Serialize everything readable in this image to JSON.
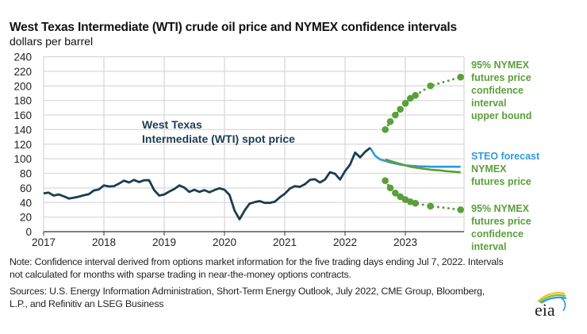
{
  "title": "West Texas Intermediate (WTI) crude oil price and NYMEX confidence intervals",
  "subtitle": "dollars per barrel",
  "note": "Note: Confidence interval derived from options market information for the five trading days ending Jul 7, 2022. Intervals not calculated for months with sparse trading in near-the-money options contracts.",
  "sources": "Sources: U.S. Energy Information Administration, Short-Term Energy Outlook, July 2022, CME Group, Bloomberg, L.P., and Refinitiv an LSEG Business",
  "logo_text": "eia",
  "colors": {
    "spot": "#1b3c52",
    "steo": "#2e9ad8",
    "nymex": "#5a9f3a",
    "grid": "#d9d9d9"
  },
  "labels": {
    "spot_line1": "West Texas",
    "spot_line2": "Intermediate (WTI) spot price",
    "upper_line1": "95% NYMEX",
    "upper_line2": "futures price",
    "upper_line3": "confidence",
    "upper_line4": "interval",
    "upper_line5": "upper bound",
    "steo": "STEO forecast",
    "nymex_line1": "NYMEX",
    "nymex_line2": "futures price",
    "lower_line1": "95% NYMEX",
    "lower_line2": "futures price",
    "lower_line3": "confidence",
    "lower_line4": "interval"
  },
  "chart_data": {
    "type": "line",
    "title": "West Texas Intermediate (WTI) crude oil price and NYMEX confidence intervals",
    "ylabel": "dollars per barrel",
    "xlabel": "",
    "ylim": [
      0,
      240
    ],
    "yticks": [
      0,
      20,
      40,
      60,
      80,
      100,
      120,
      140,
      160,
      180,
      200,
      220,
      240
    ],
    "xticks": [
      "2017",
      "2018",
      "2019",
      "2020",
      "2021",
      "2022",
      "2023"
    ],
    "xrange": [
      "2017-01",
      "2023-12"
    ],
    "grid": true,
    "series": [
      {
        "name": "West Texas Intermediate (WTI) spot price",
        "start": "2017-01",
        "values": [
          52.5,
          53.5,
          49.5,
          51,
          48.5,
          45.5,
          46.5,
          48,
          50,
          51.5,
          56.5,
          58,
          63.5,
          62,
          62.5,
          66,
          70,
          67.5,
          71,
          68,
          70.5,
          70.5,
          57,
          49.5,
          51,
          55,
          58.5,
          63.5,
          60.5,
          54.5,
          57.5,
          54.5,
          57,
          54,
          57,
          59.5,
          57.5,
          50.5,
          29,
          17,
          29,
          38.5,
          40.5,
          42,
          39.5,
          39.5,
          41,
          47,
          52,
          59,
          62.5,
          61.5,
          65,
          71,
          72,
          67.5,
          71.5,
          81.5,
          79.5,
          71.5,
          83,
          92,
          108.5,
          102,
          109.5,
          115
        ]
      },
      {
        "name": "STEO forecast",
        "start": "2022-06",
        "values": [
          115,
          104,
          99,
          97,
          95,
          93.5,
          92,
          91,
          90.5,
          90,
          89.5,
          89.5,
          89,
          89,
          89,
          89,
          89,
          89,
          89
        ]
      },
      {
        "name": "NYMEX futures price",
        "start": "2022-09",
        "values": [
          99,
          97,
          95,
          93,
          91,
          89,
          88,
          87,
          86,
          85,
          84.5,
          84,
          83,
          82.5,
          82,
          81.5
        ]
      },
      {
        "name": "95% NYMEX futures price confidence interval upper bound",
        "points": [
          [
            "2022-09",
            140
          ],
          [
            "2022-10",
            151
          ],
          [
            "2022-11",
            160
          ],
          [
            "2022-12",
            168
          ],
          [
            "2023-01",
            176
          ],
          [
            "2023-02",
            183
          ],
          [
            "2023-03",
            187
          ],
          [
            "2023-06",
            200
          ],
          [
            "2023-12",
            212
          ]
        ]
      },
      {
        "name": "95% NYMEX futures price confidence interval lower bound",
        "points": [
          [
            "2022-09",
            70
          ],
          [
            "2022-10",
            60
          ],
          [
            "2022-11",
            53
          ],
          [
            "2022-12",
            48
          ],
          [
            "2023-01",
            44
          ],
          [
            "2023-02",
            41
          ],
          [
            "2023-03",
            39
          ],
          [
            "2023-06",
            35
          ],
          [
            "2023-12",
            30
          ]
        ]
      }
    ]
  }
}
